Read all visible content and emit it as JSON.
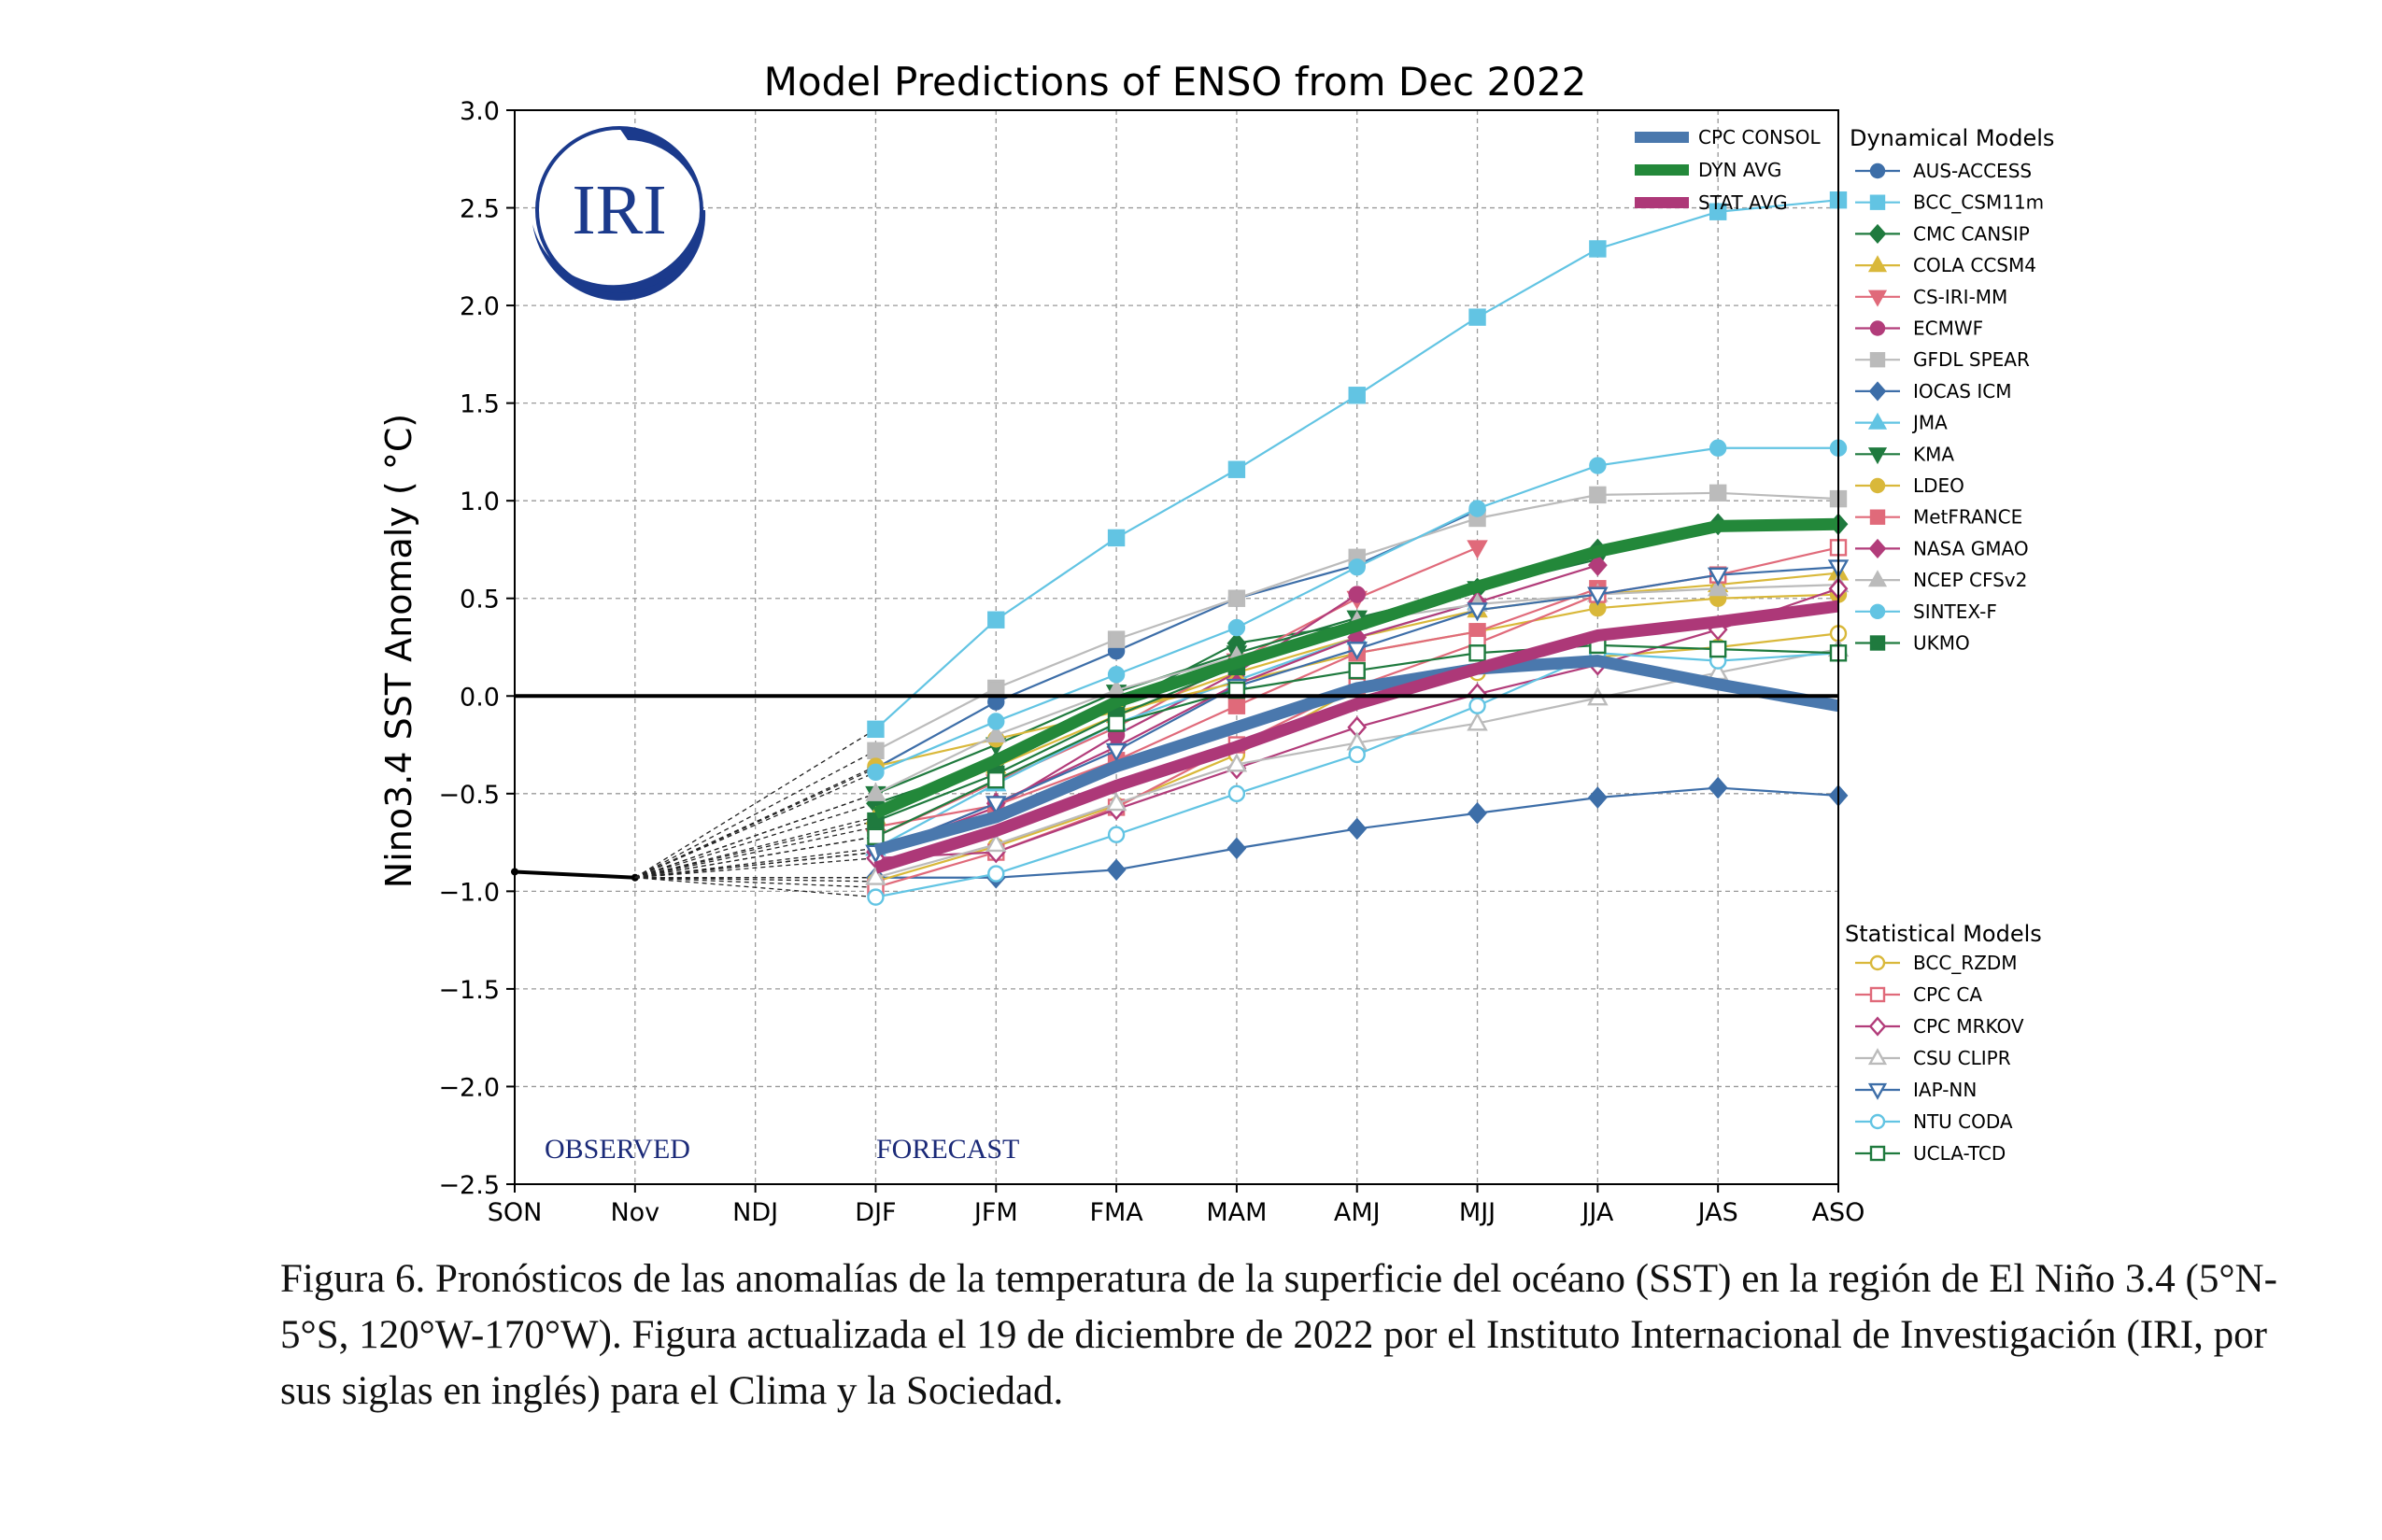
{
  "chart_data": {
    "type": "line",
    "title": "Model Predictions of ENSO from Dec 2022",
    "ylabel": "Nino3.4 SST Anomaly ( °C)",
    "xlabel": "",
    "categories": [
      "SON",
      "Nov",
      "NDJ",
      "DJF",
      "JFM",
      "FMA",
      "MAM",
      "AMJ",
      "MJJ",
      "JJA",
      "JAS",
      "ASO"
    ],
    "ylim": [
      -2.5,
      3.0
    ],
    "yticks": [
      -2.5,
      -2.0,
      -1.5,
      -1.0,
      -0.5,
      0.0,
      0.5,
      1.0,
      1.5,
      2.0,
      2.5,
      3.0
    ],
    "ytick_labels": [
      "−2.5",
      "−2.0",
      "−1.5",
      "−1.0",
      "−0.5",
      "0.0",
      "0.5",
      "1.0",
      "1.5",
      "2.0",
      "2.5",
      "3.0"
    ],
    "grid": true,
    "observed": {
      "x": [
        "SON",
        "Nov"
      ],
      "values": [
        -0.9,
        -0.93
      ],
      "color": "#000000"
    },
    "annotations": {
      "observed": "OBSERVED",
      "forecast": "FORECAST",
      "logo": "IRI"
    },
    "legend_dynamical_title": "Dynamical Models",
    "legend_statistical_title": "Statistical Models",
    "consensus": [
      {
        "name": "CPC CONSOL",
        "color": "#4a78ad",
        "values": [
          -0.79,
          -0.62,
          -0.36,
          -0.16,
          0.04,
          0.14,
          0.18,
          0.06,
          -0.05
        ]
      },
      {
        "name": "DYN AVG",
        "color": "#23883a",
        "values": [
          -0.6,
          -0.33,
          -0.03,
          0.17,
          0.36,
          0.56,
          0.74,
          0.87,
          0.88
        ]
      },
      {
        "name": "STAT AVG",
        "color": "#ad3878",
        "values": [
          -0.88,
          -0.69,
          -0.46,
          -0.26,
          -0.04,
          0.14,
          0.31,
          0.38,
          0.46
        ]
      }
    ],
    "dynamical": [
      {
        "name": "AUS-ACCESS",
        "color": "#3d6ea8",
        "marker": "circle",
        "filled": true,
        "values": [
          -0.37,
          -0.03,
          0.23,
          0.5,
          0.67,
          0.95
        ]
      },
      {
        "name": "BCC_CSM11m",
        "color": "#62c4e3",
        "marker": "square",
        "filled": true,
        "values": [
          -0.17,
          0.39,
          0.81,
          1.16,
          1.54,
          1.94,
          2.29,
          2.48,
          2.54
        ]
      },
      {
        "name": "CMC CANSIP",
        "color": "#1f7a3e",
        "marker": "diamond",
        "filled": true,
        "values": [
          -0.55,
          -0.34,
          -0.05,
          0.27,
          0.37,
          0.55,
          0.75,
          0.88,
          0.88
        ]
      },
      {
        "name": "COLA CCSM4",
        "color": "#d9b83a",
        "marker": "triangle-up",
        "filled": true,
        "values": [
          -0.62,
          -0.36,
          -0.1,
          0.12,
          0.3,
          0.44,
          0.52,
          0.57,
          0.63
        ]
      },
      {
        "name": "CS-IRI-MM",
        "color": "#e06a7a",
        "marker": "triangle-down",
        "filled": true,
        "values": [
          -0.72,
          -0.44,
          -0.16,
          0.18,
          0.5,
          0.76
        ]
      },
      {
        "name": "ECMWF",
        "color": "#b23c7a",
        "marker": "circle",
        "filled": true,
        "values": [
          -0.8,
          -0.57,
          -0.2,
          0.12,
          0.52
        ]
      },
      {
        "name": "GFDL SPEAR",
        "color": "#bbbbbb",
        "marker": "square",
        "filled": true,
        "values": [
          -0.28,
          0.04,
          0.29,
          0.5,
          0.71,
          0.91,
          1.03,
          1.04,
          1.01
        ]
      },
      {
        "name": "IOCAS ICM",
        "color": "#3d6ea8",
        "marker": "diamond",
        "filled": true,
        "values": [
          -0.93,
          -0.93,
          -0.89,
          -0.78,
          -0.68,
          -0.6,
          -0.52,
          -0.47,
          -0.51
        ]
      },
      {
        "name": "JMA",
        "color": "#62c4e3",
        "marker": "triangle-up",
        "filled": true,
        "values": [
          -0.78,
          -0.45,
          -0.14,
          0.08,
          0.3,
          0.48
        ]
      },
      {
        "name": "KMA",
        "color": "#1f7a3e",
        "marker": "triangle-down",
        "filled": true,
        "values": [
          -0.5,
          -0.25,
          0.02,
          0.22,
          0.4,
          0.55,
          0.7
        ]
      },
      {
        "name": "LDEO",
        "color": "#d9b83a",
        "marker": "circle",
        "filled": true,
        "values": [
          -0.36,
          -0.22,
          -0.08,
          0.07,
          0.22,
          0.33,
          0.45,
          0.5,
          0.52
        ]
      },
      {
        "name": "MetFRANCE",
        "color": "#e06a7a",
        "marker": "square",
        "filled": true,
        "values": [
          -0.67,
          -0.56,
          -0.33,
          -0.05,
          0.22,
          0.33,
          0.55
        ]
      },
      {
        "name": "NASA GMAO",
        "color": "#b23c7a",
        "marker": "diamond",
        "filled": true,
        "values": [
          -0.8,
          -0.55,
          -0.26,
          0.06,
          0.3,
          0.48,
          0.67
        ]
      },
      {
        "name": "NCEP CFSv2",
        "color": "#bbbbbb",
        "marker": "triangle-up",
        "filled": true,
        "values": [
          -0.5,
          -0.2,
          0.03,
          0.2,
          0.38,
          0.47,
          0.52,
          0.55,
          0.57
        ]
      },
      {
        "name": "SINTEX-F",
        "color": "#62c4e3",
        "marker": "circle",
        "filled": true,
        "values": [
          -0.39,
          -0.13,
          0.11,
          0.35,
          0.66,
          0.96,
          1.18,
          1.27,
          1.27
        ]
      },
      {
        "name": "UKMO",
        "color": "#1f7a3e",
        "marker": "square",
        "filled": true,
        "values": [
          -0.64,
          -0.4,
          -0.1,
          0.15
        ]
      }
    ],
    "statistical": [
      {
        "name": "BCC_RZDM",
        "color": "#d9b83a",
        "marker": "circle",
        "filled": false,
        "values": [
          -0.95,
          -0.77,
          -0.56,
          -0.3,
          0.04,
          0.12,
          0.2,
          0.25,
          0.32
        ]
      },
      {
        "name": "CPC CA",
        "color": "#e06a7a",
        "marker": "square",
        "filled": false,
        "values": [
          -0.98,
          -0.8,
          -0.57,
          -0.25,
          0.05,
          0.27,
          0.52,
          0.62,
          0.76
        ]
      },
      {
        "name": "CPC MRKOV",
        "color": "#b23c7a",
        "marker": "diamond",
        "filled": false,
        "values": [
          -0.83,
          -0.8,
          -0.58,
          -0.37,
          -0.16,
          0.01,
          0.16,
          0.34,
          0.55
        ]
      },
      {
        "name": "CSU CLIPR",
        "color": "#bbbbbb",
        "marker": "triangle-up",
        "filled": false,
        "values": [
          -0.93,
          -0.76,
          -0.55,
          -0.35,
          -0.24,
          -0.14,
          -0.01,
          0.12,
          0.24
        ]
      },
      {
        "name": "IAP-NN",
        "color": "#3d6ea8",
        "marker": "triangle-down",
        "filled": false,
        "values": [
          -0.8,
          -0.55,
          -0.28,
          0.05,
          0.24,
          0.44,
          0.52,
          0.62,
          0.66
        ]
      },
      {
        "name": "NTU CODA",
        "color": "#62c4e3",
        "marker": "circle",
        "filled": false,
        "values": [
          -1.03,
          -0.91,
          -0.71,
          -0.5,
          -0.3,
          -0.05,
          0.22,
          0.18,
          0.22
        ]
      },
      {
        "name": "UCLA-TCD",
        "color": "#1f7a3e",
        "marker": "square",
        "filled": false,
        "values": [
          -0.72,
          -0.43,
          -0.14,
          0.03,
          0.13,
          0.22,
          0.26,
          0.24,
          0.22
        ]
      }
    ]
  },
  "caption": "Figura 6. Pronósticos de las anomalías de la temperatura de la superficie del océano (SST) en la región de El Niño 3.4 (5°N-5°S, 120°W-170°W). Figura actualizada el 19 de diciembre de 2022 por el Instituto Internacional de Investigación (IRI, por sus siglas en inglés) para el Clima y la Sociedad."
}
